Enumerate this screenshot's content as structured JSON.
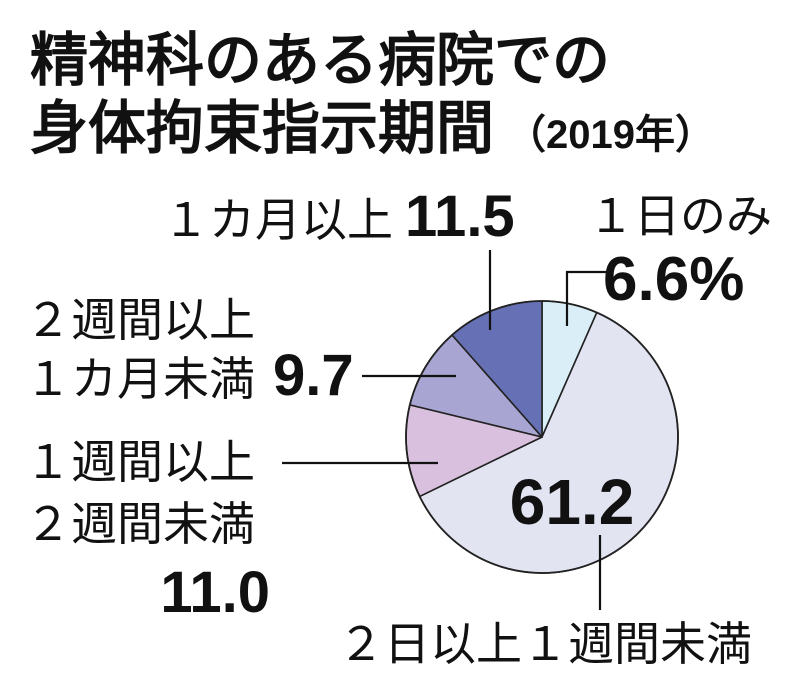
{
  "chart_data": {
    "type": "pie",
    "title_lines": [
      "精神科のある病院での",
      "身体拘束指示期間"
    ],
    "subtitle": "（2019年）",
    "slices": [
      {
        "label_lines": [
          "１日のみ"
        ],
        "value": 6.6,
        "value_label": "6.6%",
        "color": "#d9eef6"
      },
      {
        "label_lines": [
          "２日以上１週間未満"
        ],
        "value": 61.2,
        "value_label": "61.2",
        "color": "#e2e4f2"
      },
      {
        "label_lines": [
          "１週間以上",
          "２週間未満"
        ],
        "value": 11.0,
        "value_label": "11.0",
        "color": "#d8c0de"
      },
      {
        "label_lines": [
          "２週間以上",
          "１カ月未満"
        ],
        "value": 9.7,
        "value_label": "9.7",
        "color": "#a8a5d2"
      },
      {
        "label_lines": [
          "１カ月以上"
        ],
        "value": 11.5,
        "value_label": "11.5",
        "color": "#6670b4"
      }
    ]
  }
}
